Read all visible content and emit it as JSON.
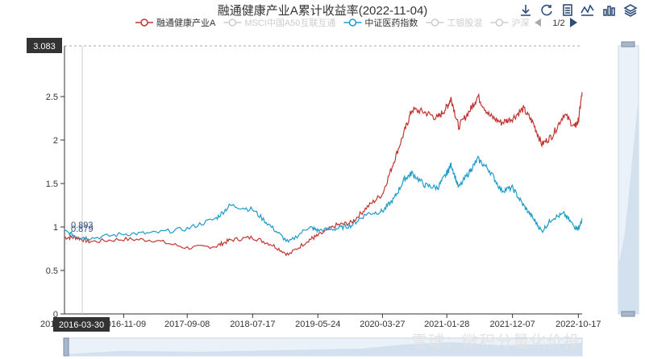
{
  "page": {
    "watermark": "雪球：微积分量化价投"
  },
  "toolbox": {
    "items": [
      "download-icon",
      "refresh-icon",
      "data-view-icon",
      "line-type-icon",
      "bar-type-icon",
      "stack-icon"
    ]
  },
  "legend": {
    "page_indicator": "1/2",
    "items": [
      {
        "label": "融通健康产业A",
        "color": "#c23531",
        "active": true
      },
      {
        "label": "MSCI中国A50互联互通",
        "color": "#cccccc",
        "active": false
      },
      {
        "label": "中证医药指数",
        "color": "#1f9cc7",
        "active": true
      },
      {
        "label": "工银股混",
        "color": "#cccccc",
        "active": false
      },
      {
        "label": "沪深",
        "color": "#cccccc",
        "active": false
      }
    ]
  },
  "chart_data": {
    "type": "line",
    "title": "融通健康产业A累计收益率(2022-11-04)",
    "xlabel": "",
    "ylabel": "",
    "ylim": [
      0,
      3.083
    ],
    "yticks": [
      0,
      0.5,
      1,
      1.5,
      2,
      2.5
    ],
    "xticks": [
      "2016-11-09",
      "2017-09-08",
      "2018-07-17",
      "2019-05-24",
      "2020-03-27",
      "2021-01-28",
      "2021-12-07",
      "2022-10-17"
    ],
    "x_start_label": "201",
    "x_end_label": "2022-10-17",
    "grid": false,
    "legend_position": "top",
    "max_marker_label": "3.083",
    "pointer_date_label": "2016-03-30",
    "pointer_value_labels": [
      "0.893",
      "0.879"
    ],
    "x": [
      "2016-02-01",
      "2016-03-30",
      "2016-06-01",
      "2016-11-09",
      "2017-04-01",
      "2017-09-08",
      "2018-01-25",
      "2018-04-01",
      "2018-07-17",
      "2018-10-15",
      "2019-01-04",
      "2019-04-10",
      "2019-05-24",
      "2019-08-20",
      "2019-11-01",
      "2020-01-10",
      "2020-03-27",
      "2020-05-20",
      "2020-07-10",
      "2020-08-15",
      "2020-10-15",
      "2020-12-15",
      "2021-01-28",
      "2021-02-18",
      "2021-03-25",
      "2021-05-20",
      "2021-06-25",
      "2021-08-20",
      "2021-10-15",
      "2021-12-07",
      "2022-01-28",
      "2022-03-15",
      "2022-04-26",
      "2022-06-15",
      "2022-08-10",
      "2022-09-30",
      "2022-10-17",
      "2022-11-04"
    ],
    "series": [
      {
        "name": "融通健康产业A",
        "color": "#c23531",
        "values": [
          0.88,
          0.879,
          0.83,
          0.86,
          0.85,
          0.76,
          0.78,
          0.85,
          0.88,
          0.8,
          0.68,
          0.85,
          0.9,
          1.02,
          1.05,
          1.22,
          1.38,
          1.75,
          2.1,
          2.35,
          2.32,
          2.25,
          2.38,
          2.48,
          2.15,
          2.35,
          2.5,
          2.28,
          2.2,
          2.25,
          2.36,
          2.2,
          1.95,
          2.05,
          2.3,
          2.15,
          2.22,
          2.55
        ]
      },
      {
        "name": "中证医药指数",
        "color": "#1f9cc7",
        "values": [
          0.95,
          0.893,
          0.87,
          0.92,
          0.93,
          0.98,
          1.1,
          1.25,
          1.2,
          1.0,
          0.82,
          1.0,
          0.96,
          0.98,
          1.02,
          1.15,
          1.18,
          1.32,
          1.55,
          1.62,
          1.48,
          1.45,
          1.62,
          1.72,
          1.45,
          1.65,
          1.78,
          1.65,
          1.42,
          1.45,
          1.25,
          1.1,
          0.95,
          1.1,
          1.15,
          1.0,
          0.98,
          1.08
        ]
      }
    ]
  }
}
